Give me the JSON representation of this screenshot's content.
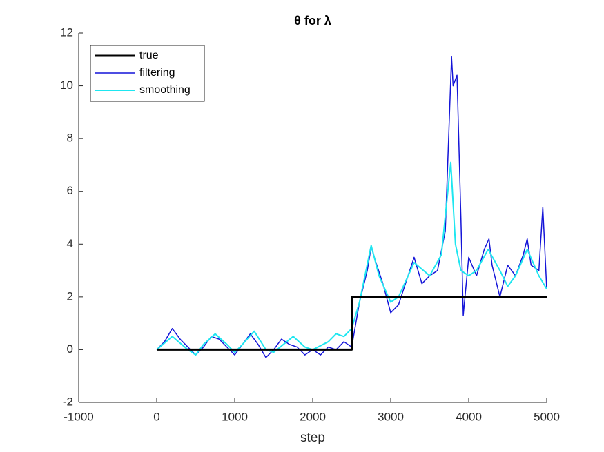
{
  "chart_data": {
    "type": "line",
    "title": "θ for λ",
    "xlabel": "step",
    "xlim": [
      -1000,
      5000
    ],
    "xticks": [
      -1000,
      0,
      1000,
      2000,
      3000,
      4000,
      5000
    ],
    "ylim": [
      -2,
      12
    ],
    "yticks": [
      -2,
      0,
      2,
      4,
      6,
      8,
      10,
      12
    ],
    "legend": "upper-left",
    "series": [
      {
        "name": "true",
        "color": "#000000",
        "width": 3,
        "x": [
          0,
          2500,
          2500,
          5000
        ],
        "values": [
          0,
          0,
          2,
          2
        ]
      },
      {
        "name": "filtering",
        "color": "#1414d8",
        "width": 1.5,
        "x": [
          0,
          100,
          200,
          300,
          400,
          500,
          600,
          700,
          800,
          900,
          1000,
          1100,
          1200,
          1300,
          1400,
          1500,
          1600,
          1700,
          1800,
          1900,
          2000,
          2100,
          2200,
          2300,
          2400,
          2500,
          2600,
          2700,
          2750,
          2800,
          2900,
          3000,
          3100,
          3200,
          3300,
          3400,
          3500,
          3600,
          3700,
          3780,
          3800,
          3850,
          3900,
          3930,
          4000,
          4100,
          4200,
          4260,
          4300,
          4400,
          4500,
          4600,
          4700,
          4750,
          4800,
          4900,
          4950,
          5000
        ],
        "values": [
          0,
          0.3,
          0.8,
          0.4,
          0.1,
          -0.2,
          0.1,
          0.5,
          0.4,
          0.1,
          -0.2,
          0.2,
          0.6,
          0.2,
          -0.3,
          0.0,
          0.4,
          0.2,
          0.1,
          -0.2,
          0.0,
          -0.2,
          0.1,
          0.0,
          0.3,
          0.1,
          1.8,
          3.0,
          3.9,
          3.4,
          2.5,
          1.4,
          1.7,
          2.6,
          3.5,
          2.5,
          2.8,
          3.0,
          4.5,
          11.1,
          10.0,
          10.4,
          5,
          1.3,
          3.5,
          2.8,
          3.8,
          4.2,
          3.2,
          2.0,
          3.2,
          2.8,
          3.6,
          4.2,
          3.2,
          3.0,
          5.4,
          2.3
        ]
      },
      {
        "name": "smoothing",
        "color": "#1ee6f0",
        "width": 2,
        "x": [
          0,
          200,
          400,
          500,
          600,
          750,
          900,
          1000,
          1100,
          1250,
          1400,
          1500,
          1750,
          1900,
          2000,
          2200,
          2300,
          2400,
          2500,
          2600,
          2750,
          2850,
          3000,
          3100,
          3300,
          3500,
          3650,
          3770,
          3830,
          3900,
          4000,
          4100,
          4250,
          4400,
          4500,
          4600,
          4750,
          4900,
          5000
        ],
        "values": [
          0,
          0.5,
          0,
          -0.2,
          0.2,
          0.6,
          0.2,
          -0.1,
          0.2,
          0.7,
          0.0,
          -0.1,
          0.5,
          0.1,
          0.0,
          0.3,
          0.6,
          0.5,
          0.8,
          1.8,
          3.95,
          2.8,
          1.8,
          2.0,
          3.3,
          2.8,
          3.6,
          7.1,
          4.0,
          3.0,
          2.8,
          3.0,
          3.8,
          3.0,
          2.4,
          2.8,
          3.8,
          2.8,
          2.3
        ]
      }
    ]
  }
}
